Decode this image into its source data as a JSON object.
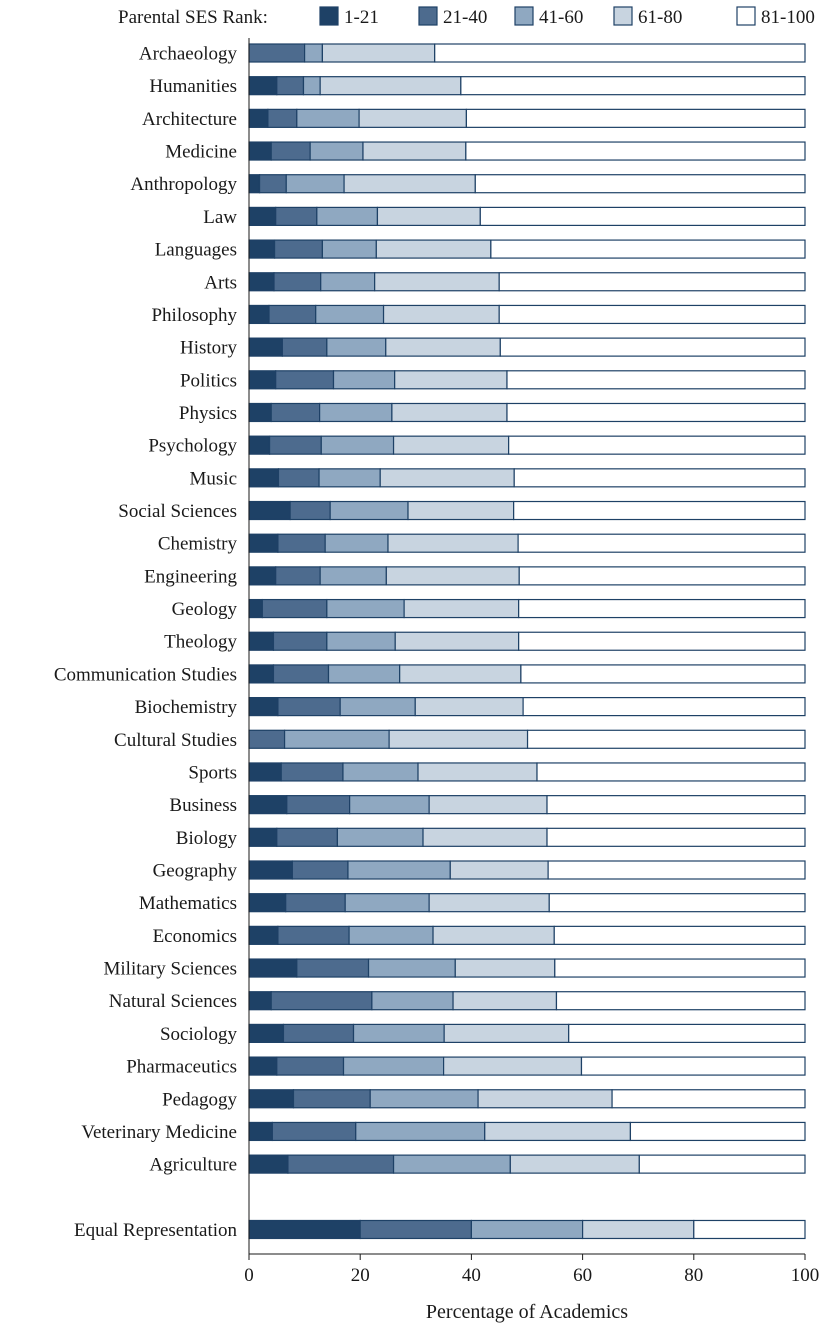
{
  "chart_data": {
    "type": "bar",
    "orientation": "horizontal",
    "stacked": true,
    "legend_title": "Parental SES Rank:",
    "legend_position": "top",
    "xlabel": "Percentage of Academics",
    "ylabel": "",
    "xlim": [
      0,
      100
    ],
    "xticks": [
      0,
      20,
      40,
      60,
      80,
      100
    ],
    "grid": false,
    "categories": [
      "Archaeology",
      "Humanities",
      "Architecture",
      "Medicine",
      "Anthropology",
      "Law",
      "Languages",
      "Arts",
      "Philosophy",
      "History",
      "Politics",
      "Physics",
      "Psychology",
      "Music",
      "Social Sciences",
      "Chemistry",
      "Engineering",
      "Geology",
      "Theology",
      "Communication Studies",
      "Biochemistry",
      "Cultural Studies",
      "Sports",
      "Business",
      "Biology",
      "Geography",
      "Mathematics",
      "Economics",
      "Military Sciences",
      "Natural Sciences",
      "Sociology",
      "Pharmaceutics",
      "Pedagogy",
      "Veterinary Medicine",
      "Agriculture",
      "",
      "Equal Representation"
    ],
    "colors": [
      "#1e4166",
      "#4d6b8e",
      "#8fa8c1",
      "#c8d4e0",
      "#ffffff"
    ],
    "series": [
      {
        "name": "1-21",
        "values": [
          0.0,
          5.0,
          3.4,
          4.0,
          1.9,
          4.8,
          4.6,
          4.5,
          3.6,
          6.0,
          4.8,
          4.0,
          3.7,
          5.3,
          7.4,
          5.2,
          4.8,
          2.4,
          4.4,
          4.4,
          5.2,
          0.0,
          5.8,
          6.8,
          5.0,
          7.8,
          6.6,
          5.2,
          8.6,
          4.0,
          6.2,
          5.0,
          8.0,
          4.2,
          7.0,
          0,
          20
        ]
      },
      {
        "name": "21-40",
        "values": [
          10.0,
          4.8,
          5.2,
          7.0,
          4.8,
          7.4,
          8.6,
          8.4,
          8.4,
          8.0,
          10.4,
          8.7,
          9.3,
          7.3,
          7.2,
          8.5,
          8.0,
          11.6,
          9.6,
          9.9,
          11.2,
          6.4,
          11.1,
          11.3,
          10.9,
          10.0,
          10.7,
          12.8,
          12.9,
          18.1,
          12.6,
          12.0,
          13.8,
          15.0,
          19.0,
          0,
          20
        ]
      },
      {
        "name": "41-60",
        "values": [
          3.2,
          3.0,
          11.2,
          9.5,
          10.4,
          10.9,
          9.7,
          9.7,
          12.2,
          10.6,
          11.0,
          13.0,
          13.0,
          11.0,
          14.0,
          11.3,
          11.9,
          13.9,
          12.3,
          12.8,
          13.5,
          18.8,
          13.5,
          14.3,
          15.4,
          18.4,
          15.1,
          15.1,
          15.6,
          14.6,
          16.3,
          18.0,
          19.4,
          23.2,
          21.0,
          0,
          20
        ]
      },
      {
        "name": "61-80",
        "values": [
          20.2,
          25.3,
          19.3,
          18.5,
          23.6,
          18.5,
          20.6,
          22.4,
          20.8,
          20.6,
          20.2,
          20.7,
          20.7,
          24.1,
          19.0,
          23.4,
          23.9,
          20.6,
          22.2,
          21.8,
          19.4,
          24.9,
          21.4,
          21.2,
          22.3,
          17.6,
          21.6,
          21.8,
          17.9,
          18.6,
          22.4,
          24.8,
          24.1,
          26.2,
          23.2,
          0,
          20
        ]
      },
      {
        "name": "81-100",
        "values": [
          66.6,
          61.9,
          60.9,
          61.0,
          59.3,
          58.4,
          56.5,
          55.0,
          55.0,
          54.8,
          53.6,
          53.6,
          53.3,
          52.3,
          52.4,
          51.6,
          51.4,
          51.5,
          51.5,
          51.1,
          50.7,
          49.9,
          48.2,
          46.4,
          46.4,
          46.2,
          46.0,
          45.1,
          45.0,
          44.7,
          42.5,
          40.2,
          34.7,
          31.4,
          29.8,
          0,
          20
        ]
      }
    ]
  }
}
